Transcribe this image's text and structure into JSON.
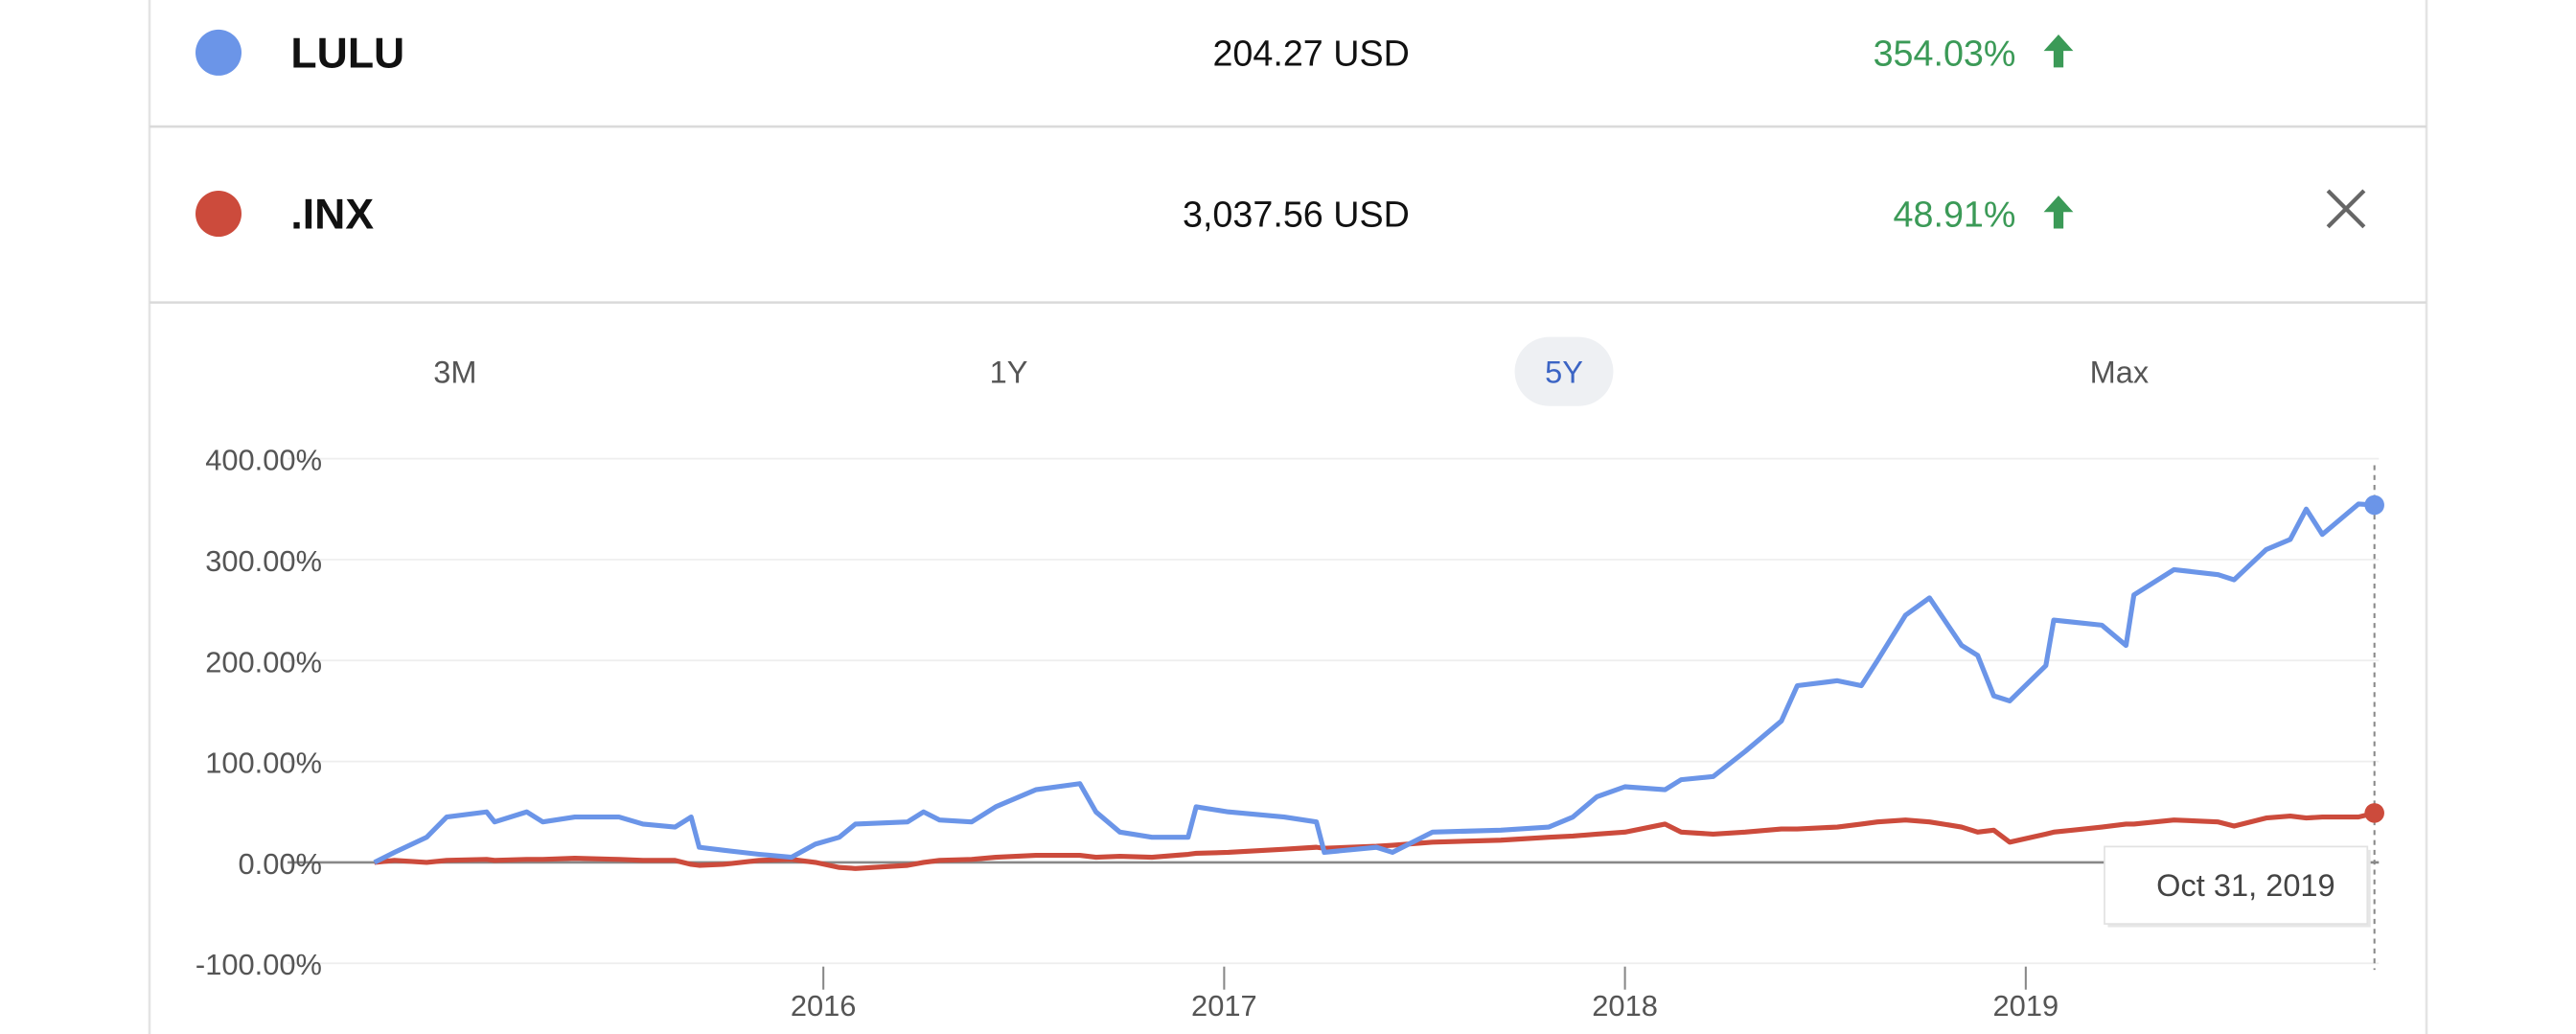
{
  "rows": [
    {
      "price": "204.27 USD",
      "change": "354.03%"
    },
    {
      "price": "3,037.56 USD",
      "change": "48.91%"
    }
  ],
  "range_buttons": [
    "3M",
    "1Y",
    "5Y",
    "Max"
  ],
  "selected_range_index": 2,
  "chart_data": {
    "type": "line",
    "x": [
      2014.88,
      2014.93,
      2015.01,
      2015.06,
      2015.16,
      2015.18,
      2015.26,
      2015.3,
      2015.38,
      2015.49,
      2015.55,
      2015.63,
      2015.67,
      2015.69,
      2015.75,
      2015.84,
      2015.92,
      2015.98,
      2016.04,
      2016.08,
      2016.21,
      2016.25,
      2016.29,
      2016.37,
      2016.43,
      2016.53,
      2016.64,
      2016.68,
      2016.74,
      2016.82,
      2016.91,
      2016.93,
      2017.01,
      2017.15,
      2017.23,
      2017.25,
      2017.38,
      2017.42,
      2017.52,
      2017.69,
      2017.81,
      2017.87,
      2017.93,
      2018.0,
      2018.1,
      2018.14,
      2018.22,
      2018.3,
      2018.39,
      2018.43,
      2018.53,
      2018.59,
      2018.63,
      2018.7,
      2018.76,
      2018.84,
      2018.88,
      2018.92,
      2018.96,
      2019.05,
      2019.07,
      2019.19,
      2019.25,
      2019.27,
      2019.37,
      2019.48,
      2019.52,
      2019.6,
      2019.66,
      2019.7,
      2019.74,
      2019.83,
      2019.87
    ],
    "series": [
      {
        "name": "LULU",
        "color": "#6b95e8",
        "values": [
          0,
          10,
          25,
          45,
          50,
          40,
          50,
          40,
          45,
          45,
          38,
          35,
          45,
          15,
          12,
          8,
          5,
          18,
          25,
          38,
          40,
          50,
          42,
          40,
          55,
          72,
          78,
          50,
          30,
          25,
          25,
          55,
          50,
          45,
          40,
          10,
          15,
          10,
          30,
          32,
          35,
          45,
          65,
          75,
          72,
          82,
          85,
          110,
          140,
          175,
          180,
          175,
          200,
          245,
          262,
          215,
          205,
          165,
          160,
          195,
          240,
          235,
          215,
          265,
          290,
          285,
          280,
          310,
          320,
          350,
          325,
          355,
          354.03
        ]
      },
      {
        "name": ".INX",
        "color": "#cc4b3c",
        "values": [
          0,
          2,
          0,
          2,
          3,
          2,
          3,
          3,
          4,
          3,
          2,
          2,
          -2,
          -3,
          -2,
          2,
          3,
          0,
          -5,
          -6,
          -3,
          0,
          2,
          3,
          5,
          7,
          7,
          5,
          6,
          5,
          8,
          9,
          10,
          13,
          15,
          14,
          16,
          17,
          20,
          22,
          25,
          26,
          28,
          30,
          38,
          30,
          28,
          30,
          33,
          33,
          35,
          38,
          40,
          42,
          40,
          35,
          30,
          32,
          20,
          28,
          30,
          35,
          38,
          38,
          42,
          40,
          36,
          44,
          46,
          44,
          45,
          45,
          48.91
        ]
      }
    ],
    "xlim": [
      2014.663,
      2019.881
    ],
    "xticks": [
      2016,
      2017,
      2018,
      2019
    ],
    "ylim": [
      -100,
      400
    ],
    "yticks": [
      {
        "value": -100,
        "label": "-100.00%"
      },
      {
        "value": 0,
        "label": "0.00%"
      },
      {
        "value": 100,
        "label": "100.00%"
      },
      {
        "value": 200,
        "label": "200.00%"
      },
      {
        "value": 300,
        "label": "300.00%"
      },
      {
        "value": 400,
        "label": "400.00%"
      }
    ],
    "grid": true,
    "tooltip": "Oct 31, 2019"
  }
}
